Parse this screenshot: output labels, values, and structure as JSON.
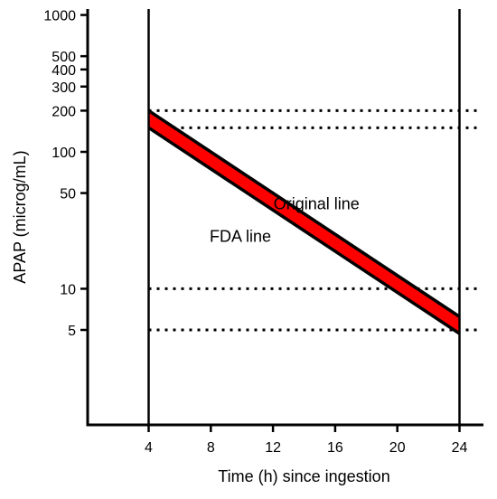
{
  "chart_data": {
    "type": "line",
    "title": "",
    "xlabel": "Time (h) since ingestion",
    "ylabel": "APAP (microg/mL)",
    "y_scale": "log",
    "xlim": [
      0,
      26
    ],
    "ylim": [
      1.4,
      1300
    ],
    "x_ticks": [
      4,
      8,
      12,
      16,
      20,
      24
    ],
    "y_ticks": [
      5,
      10,
      50,
      100,
      200,
      300,
      400,
      500,
      1000
    ],
    "grid": false,
    "vertical_lines_x": [
      4,
      24
    ],
    "dotted_reference_lines": [
      {
        "y": 200
      },
      {
        "y": 150
      },
      {
        "y": 10
      },
      {
        "y": 5
      }
    ],
    "series": [
      {
        "name": "Original line",
        "x": [
          4,
          24
        ],
        "y": [
          200,
          6.25
        ],
        "color": "#000000"
      },
      {
        "name": "FDA line",
        "x": [
          4,
          24
        ],
        "y": [
          150,
          4.7
        ],
        "color": "#000000"
      }
    ],
    "band_fill_color": "#ff0000",
    "annotations": [
      {
        "text": "Original line",
        "x": 14.8,
        "y": 38
      },
      {
        "text": "FDA line",
        "x": 9.9,
        "y": 22
      }
    ]
  }
}
